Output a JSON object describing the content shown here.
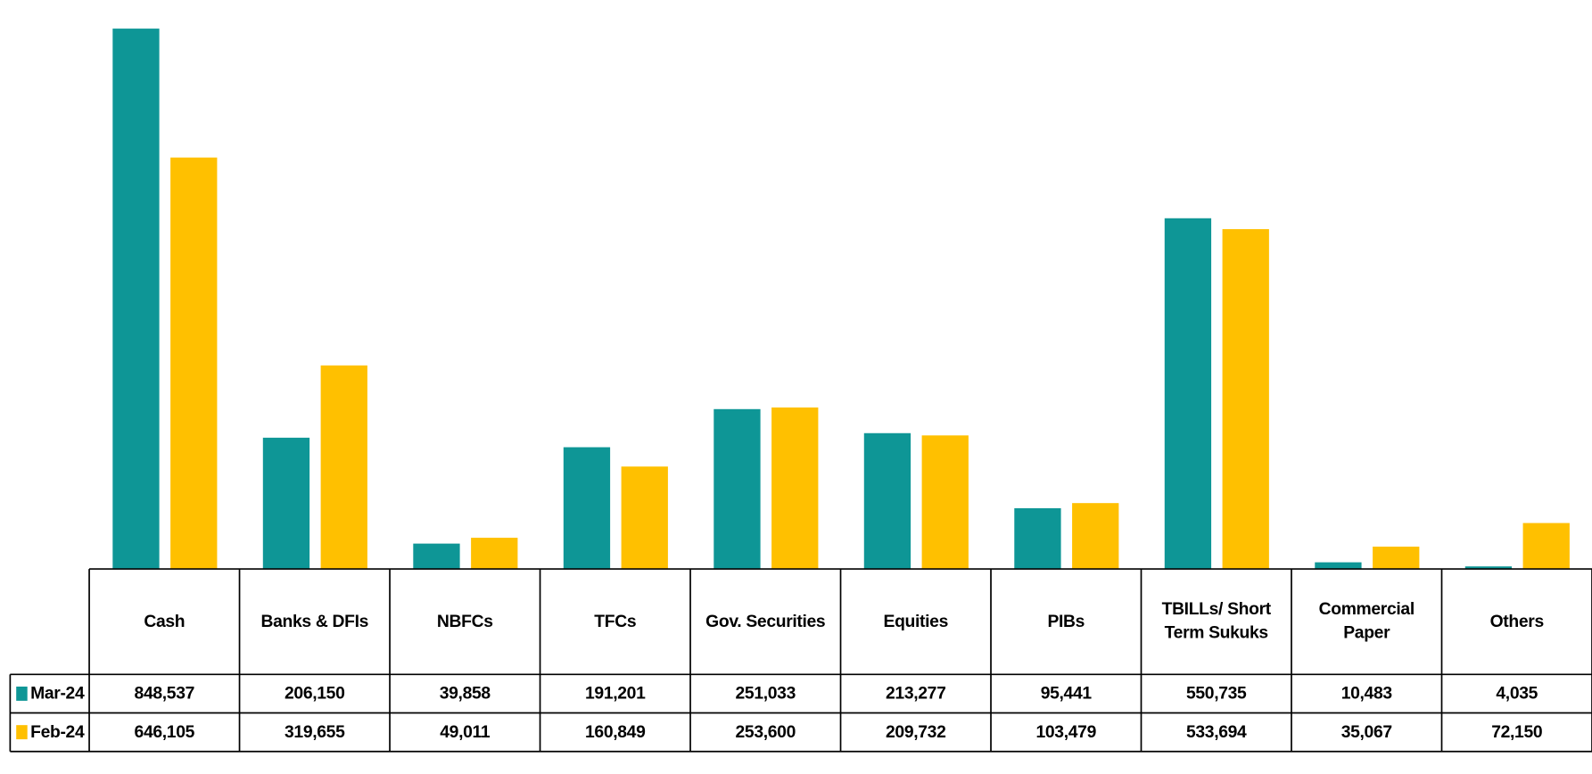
{
  "chart_data": {
    "type": "bar",
    "categories": [
      "Cash",
      "Banks & DFIs",
      "NBFCs",
      "TFCs",
      "Gov. Securities",
      "Equities",
      "PIBs",
      "TBILLs/ Short Term Sukuks",
      "Commercial Paper",
      "Others"
    ],
    "series": [
      {
        "name": "Mar-24",
        "color": "#0e9696",
        "values": [
          848537,
          206150,
          39858,
          191201,
          251033,
          213277,
          95441,
          550735,
          10483,
          4035
        ],
        "value_labels": [
          "848,537",
          "206,150",
          "39,858",
          "191,201",
          "251,033",
          "213,277",
          "95,441",
          "550,735",
          "10,483",
          "4,035"
        ]
      },
      {
        "name": "Feb-24",
        "color": "#ffc000",
        "values": [
          646105,
          319655,
          49011,
          160849,
          253600,
          209732,
          103479,
          533694,
          35067,
          72150
        ],
        "value_labels": [
          "646,105",
          "319,655",
          "49,011",
          "160,849",
          "253,600",
          "209,732",
          "103,479",
          "533,694",
          "35,067",
          "72,150"
        ]
      }
    ]
  }
}
